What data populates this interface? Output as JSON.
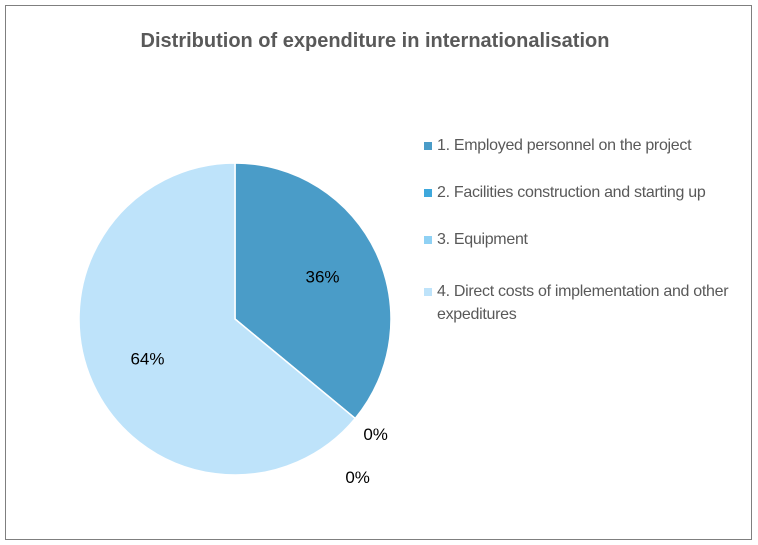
{
  "chart_data": {
    "type": "pie",
    "title": "Distribution of expenditure in internationalisation",
    "categories": [
      "1. Employed personnel on the project",
      "2. Facilities construction and starting up",
      "3. Equipment",
      "4. Direct costs of implementation and other expeditures"
    ],
    "values": [
      36,
      0,
      0,
      64
    ],
    "value_labels": [
      "36%",
      "0%",
      "0%",
      "64%"
    ],
    "colors": [
      "#4a9cc8",
      "#3ea8dc",
      "#8fd1f4",
      "#bee3fa"
    ],
    "legend": "right"
  }
}
